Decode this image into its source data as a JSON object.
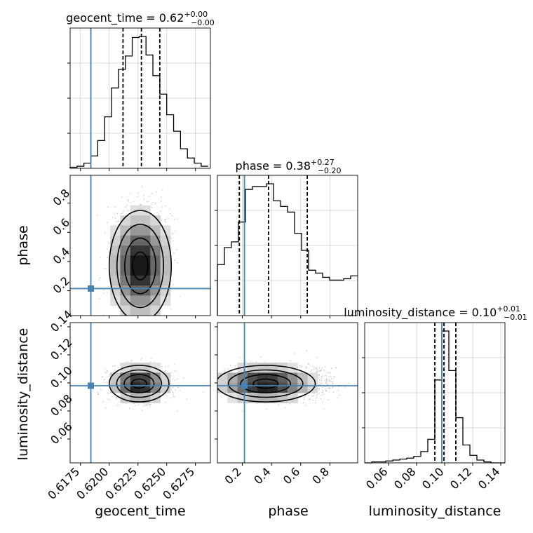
{
  "chart_data": {
    "type": "corner",
    "parameters": [
      "geocent_time",
      "phase",
      "luminosity_distance"
    ],
    "truth_color": "#4682b4",
    "titles": [
      {
        "param": "geocent_time",
        "prefix": "geocent_time = 0.62",
        "plus": "+0.00",
        "minus": "−0.00"
      },
      {
        "param": "phase",
        "prefix": "phase = 0.38",
        "plus": "+0.27",
        "minus": "−0.20"
      },
      {
        "param": "luminosity_distance",
        "prefix": "luminosity_distance = 0.10",
        "plus": "+0.01",
        "minus": "−0.01"
      }
    ],
    "ranges": {
      "geocent_time": [
        0.6166,
        0.6288
      ],
      "phase": [
        0.03,
        0.99
      ],
      "luminosity_distance": [
        0.043,
        0.143
      ]
    },
    "truths": {
      "geocent_time": 0.6184,
      "phase": 0.215,
      "luminosity_distance": 0.098
    },
    "quantiles": {
      "geocent_time": [
        0.6212,
        0.6228,
        0.6244
      ],
      "phase": [
        0.18,
        0.38,
        0.645
      ],
      "luminosity_distance": [
        0.093,
        0.0995,
        0.108
      ]
    },
    "x_ticks": {
      "geocent_time": [
        0.6175,
        0.62,
        0.6225,
        0.625,
        0.6275
      ],
      "phase": [
        0.2,
        0.4,
        0.6,
        0.8
      ],
      "luminosity_distance": [
        0.06,
        0.08,
        0.1,
        0.12,
        0.14
      ]
    },
    "x_tick_labels": {
      "geocent_time": [
        "0.6175",
        "0.6200",
        "0.6225",
        "0.6250",
        "0.6275"
      ],
      "phase": [
        "0.2",
        "0.4",
        "0.6",
        "0.8"
      ],
      "luminosity_distance": [
        "0.06",
        "0.08",
        "0.10",
        "0.12",
        "0.14"
      ]
    },
    "y_ticks": {
      "phase": [
        0.2,
        0.4,
        0.6,
        0.8
      ],
      "luminosity_distance": [
        0.06,
        0.08,
        0.1,
        0.12,
        0.14
      ]
    },
    "y_tick_labels": {
      "phase": [
        "0.2",
        "0.4",
        "0.6",
        "0.8"
      ],
      "luminosity_distance": [
        "0.06",
        "0.08",
        "0.10",
        "0.12",
        "0.14"
      ]
    },
    "histograms": {
      "geocent_time": {
        "edges": [
          0.6166,
          0.6172,
          0.6178,
          0.6184,
          0.619,
          0.6196,
          0.6202,
          0.6208,
          0.6214,
          0.622,
          0.6226,
          0.6232,
          0.6238,
          0.6244,
          0.625,
          0.6256,
          0.6262,
          0.6268,
          0.6274,
          0.628,
          0.6286
        ],
        "counts": [
          1,
          2,
          5,
          12,
          27,
          50,
          78,
          96,
          109,
          127,
          128,
          110,
          90,
          72,
          52,
          36,
          19,
          10,
          5,
          2
        ]
      },
      "phase": {
        "edges": [
          0.03,
          0.078,
          0.126,
          0.174,
          0.222,
          0.27,
          0.318,
          0.366,
          0.414,
          0.462,
          0.51,
          0.558,
          0.606,
          0.654,
          0.702,
          0.75,
          0.798,
          0.846,
          0.894,
          0.942,
          0.99
        ],
        "counts": [
          36,
          48,
          52,
          66,
          89,
          91,
          91,
          93,
          81,
          77,
          73,
          58,
          46,
          32,
          30,
          27,
          25,
          25,
          26,
          28
        ]
      },
      "luminosity_distance": {
        "edges": [
          0.043,
          0.048,
          0.053,
          0.058,
          0.063,
          0.068,
          0.073,
          0.078,
          0.083,
          0.088,
          0.093,
          0.098,
          0.103,
          0.108,
          0.113,
          0.118,
          0.123,
          0.128,
          0.133,
          0.138,
          0.143
        ],
        "counts": [
          0,
          1,
          1,
          2,
          3,
          4,
          5,
          7,
          12,
          25,
          88,
          140,
          98,
          48,
          19,
          8,
          3,
          1,
          0,
          0
        ]
      }
    },
    "densities": [
      {
        "x": "geocent_time",
        "y": "phase",
        "center": [
          0.6227,
          0.37
        ],
        "sigma": [
          0.00135,
          0.19
        ]
      },
      {
        "x": "geocent_time",
        "y": "luminosity_distance",
        "center": [
          0.6226,
          0.0995
        ],
        "sigma": [
          0.0013,
          0.0065
        ]
      },
      {
        "x": "phase",
        "y": "luminosity_distance",
        "center": [
          0.36,
          0.0995
        ],
        "sigma": [
          0.17,
          0.0065
        ]
      }
    ]
  }
}
